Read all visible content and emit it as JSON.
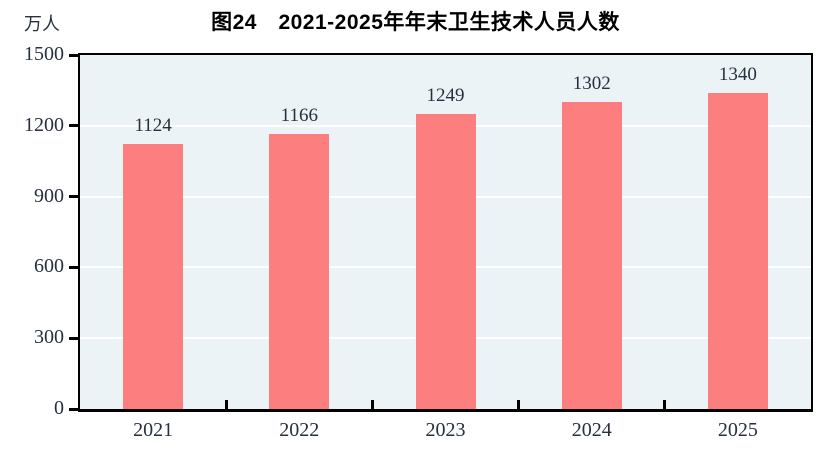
{
  "chart_data": {
    "type": "bar",
    "title": "图24　2021-2025年年末卫生技术人员人数",
    "unit_label": "万人",
    "categories": [
      "2021",
      "2022",
      "2023",
      "2024",
      "2025"
    ],
    "values": [
      1124,
      1166,
      1249,
      1302,
      1340
    ],
    "xlabel": "",
    "ylabel": "万人",
    "ylim": [
      0,
      1500
    ],
    "yticks": [
      0,
      300,
      600,
      900,
      1200,
      1500
    ],
    "grid": true,
    "legend": "none",
    "colors": {
      "bar": "#FC7E7E",
      "plot_bg": "#ECF3F7",
      "gridline": "#FFFFFF",
      "axis": "#000000",
      "tick_label": "#26303E",
      "title": "#000000"
    }
  }
}
